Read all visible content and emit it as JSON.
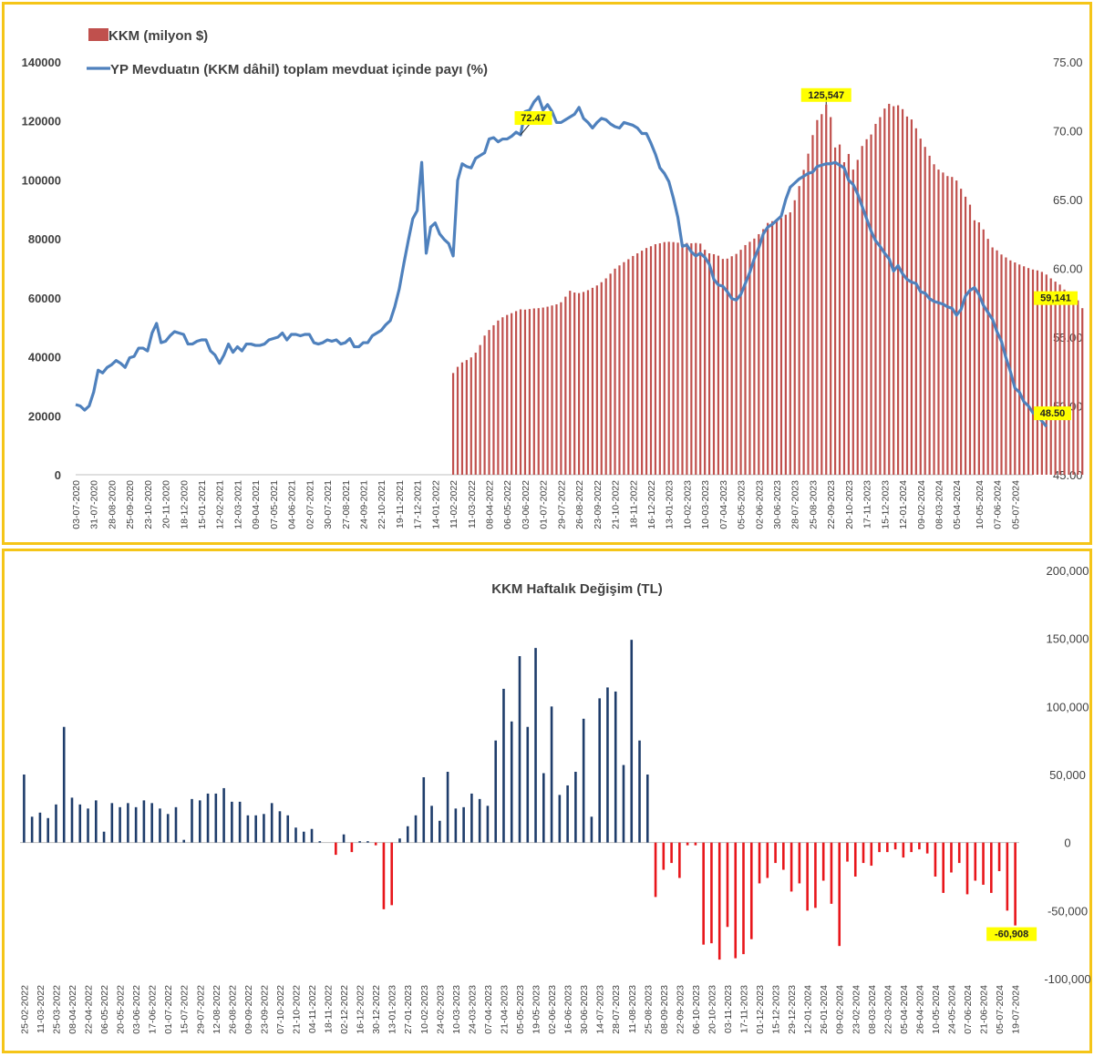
{
  "chart_data": [
    {
      "type": "bar+line",
      "title": "",
      "legend": [
        {
          "name": "KKM (milyon $)",
          "color": "#c0504d",
          "kind": "bar"
        },
        {
          "name": "YP Mevduatın (KKM dâhil) toplam mevduat içinde payı (%)",
          "color": "#4f81bd",
          "kind": "line"
        }
      ],
      "legend_position": "top-left",
      "left_axis": {
        "min": 0,
        "max": 140000,
        "ticks": [
          "0",
          "20000",
          "40000",
          "60000",
          "80000",
          "100000",
          "120000",
          "140000"
        ],
        "tick_values": [
          0,
          20000,
          40000,
          60000,
          80000,
          100000,
          120000,
          140000
        ]
      },
      "right_axis": {
        "min": 45,
        "max": 75,
        "ticks": [
          "45.00",
          "50.00",
          "55.00",
          "60.00",
          "65.00",
          "70.00",
          "75.00"
        ],
        "tick_values": [
          45,
          50,
          55,
          60,
          65,
          70,
          75
        ]
      },
      "x_tick_labels": [
        "03-07-2020",
        "31-07-2020",
        "28-08-2020",
        "25-09-2020",
        "23-10-2020",
        "20-11-2020",
        "18-12-2020",
        "15-01-2021",
        "12-02-2021",
        "12-03-2021",
        "09-04-2021",
        "07-05-2021",
        "04-06-2021",
        "02-07-2021",
        "30-07-2021",
        "27-08-2021",
        "24-09-2021",
        "22-10-2021",
        "19-11-2021",
        "17-12-2021",
        "14-01-2022",
        "11-02-2022",
        "11-03-2022",
        "08-04-2022",
        "06-05-2022",
        "03-06-2022",
        "01-07-2022",
        "29-07-2022",
        "26-08-2022",
        "23-09-2022",
        "21-10-2022",
        "18-11-2022",
        "16-12-2022",
        "13-01-2023",
        "10-02-2023",
        "10-03-2023",
        "07-04-2023",
        "05-05-2023",
        "02-06-2023",
        "30-06-2023",
        "28-07-2023",
        "25-08-2023",
        "22-09-2023",
        "20-10-2023",
        "17-11-2023",
        "15-12-2023",
        "12-01-2024",
        "09-02-2024",
        "08-03-2024",
        "05-04-2024",
        "10-05-2024",
        "07-06-2024",
        "05-07-2024"
      ],
      "kkm_series": {
        "name": "KKM (milyon $)",
        "start_date": "2022-02-11",
        "values": [
          34500,
          36600,
          38100,
          38900,
          39800,
          41400,
          44000,
          47200,
          49100,
          50700,
          52300,
          53400,
          54200,
          54800,
          55500,
          56100,
          56000,
          56200,
          56400,
          56500,
          56700,
          57000,
          57400,
          57800,
          58500,
          60400,
          62400,
          61800,
          61600,
          62000,
          62600,
          63400,
          64200,
          65300,
          66600,
          68200,
          69900,
          71000,
          72100,
          73100,
          74200,
          75100,
          76000,
          76900,
          77500,
          78200,
          78500,
          78900,
          79000,
          78900,
          78700,
          78600,
          78600,
          78500,
          78600,
          78400,
          76300,
          75100,
          74800,
          74300,
          73200,
          73300,
          74100,
          74900,
          76300,
          77900,
          79000,
          80100,
          81600,
          83300,
          85400,
          86000,
          86700,
          87100,
          88200,
          89000,
          93100,
          97900,
          103400,
          108900,
          115200,
          120300,
          122300,
          125547,
          121300,
          111000,
          112000,
          106000,
          108800,
          103500,
          106800,
          111500,
          113800,
          115400,
          119000,
          121300,
          124200,
          125800,
          125000,
          125300,
          124000,
          121500,
          120500,
          117500,
          114000,
          111200,
          108200,
          105300,
          103500,
          102500,
          101300,
          101000,
          99800,
          97000,
          94300,
          91600,
          86300,
          85600,
          83200,
          80000,
          77100,
          76100,
          74700,
          73700,
          72700,
          72000,
          71300,
          70700,
          70100,
          69600,
          69300,
          68800,
          67900,
          66600,
          65500,
          64500,
          62800,
          61300,
          60400,
          59141,
          56500
        ]
      },
      "share_series": {
        "name": "YP Mevduatın (KKM dâhil) toplam mevduat içinde payı (%)",
        "start_date": "2020-07-03",
        "values": [
          50.1,
          50.0,
          49.7,
          50.0,
          51.0,
          52.6,
          52.4,
          52.8,
          53.0,
          53.3,
          53.1,
          52.8,
          53.5,
          53.6,
          54.2,
          54.2,
          54.0,
          55.3,
          56.0,
          54.6,
          54.7,
          55.1,
          55.4,
          55.3,
          55.2,
          54.5,
          54.5,
          54.7,
          54.8,
          54.8,
          54.0,
          53.7,
          53.1,
          53.7,
          54.5,
          53.9,
          54.3,
          54.0,
          54.5,
          54.5,
          54.4,
          54.4,
          54.5,
          54.8,
          54.9,
          55.0,
          55.3,
          54.8,
          55.2,
          55.2,
          55.1,
          55.2,
          55.2,
          54.6,
          54.5,
          54.6,
          54.8,
          54.7,
          54.8,
          54.5,
          54.6,
          54.9,
          54.3,
          54.3,
          54.6,
          54.6,
          55.1,
          55.3,
          55.5,
          55.9,
          56.2,
          57.2,
          58.5,
          60.3,
          62.0,
          63.6,
          64.2,
          67.7,
          61.1,
          63.0,
          63.3,
          62.5,
          62.1,
          61.8,
          60.9,
          66.4,
          67.6,
          67.4,
          67.3,
          68.0,
          68.2,
          68.4,
          69.4,
          69.5,
          69.2,
          69.4,
          69.4,
          69.6,
          69.9,
          69.7,
          71.4,
          71.5,
          72.1,
          72.47,
          71.5,
          71.9,
          71.4,
          70.6,
          70.6,
          70.8,
          71.0,
          71.2,
          71.7,
          70.9,
          70.6,
          70.2,
          70.6,
          70.9,
          70.8,
          70.5,
          70.3,
          70.2,
          70.6,
          70.5,
          70.4,
          70.2,
          69.8,
          69.8,
          69.1,
          68.3,
          67.3,
          66.9,
          66.3,
          65.1,
          63.7,
          61.6,
          61.7,
          61.2,
          60.9,
          61.1,
          60.8,
          60.3,
          59.2,
          58.8,
          58.7,
          58.3,
          57.8,
          57.7,
          58.1,
          58.9,
          59.7,
          60.7,
          61.5,
          62.5,
          63.0,
          63.2,
          63.5,
          63.8,
          65.0,
          65.9,
          66.2,
          66.5,
          66.7,
          66.9,
          67.0,
          67.4,
          67.5,
          67.6,
          67.6,
          67.7,
          67.5,
          67.3,
          66.4,
          66.1,
          65.4,
          64.5,
          63.6,
          62.7,
          62.0,
          61.6,
          61.1,
          60.7,
          59.8,
          60.2,
          59.6,
          59.2,
          59.0,
          58.9,
          58.3,
          58.2,
          57.8,
          57.6,
          57.5,
          57.4,
          57.2,
          57.1,
          56.6,
          57.0,
          58.0,
          58.4,
          58.6,
          58.1,
          57.3,
          56.8,
          56.3,
          55.4,
          54.7,
          53.5,
          52.5,
          51.3,
          51.0,
          50.3,
          50.0,
          49.5,
          49.3,
          48.9,
          48.5
        ]
      },
      "annotations": [
        {
          "label": "72.47",
          "series": "share",
          "index": 99
        },
        {
          "label": "125,547",
          "series": "kkm",
          "index": 83
        },
        {
          "label": "59,141",
          "series": "kkm",
          "index": 139
        },
        {
          "label": "48.50",
          "series": "share",
          "index": 214
        }
      ],
      "grid": false
    },
    {
      "type": "bar",
      "title": "KKM Haftalık Değişim (TL)",
      "y_axis": {
        "min": -100000,
        "max": 200000,
        "ticks": [
          "-100,000",
          "-50,000",
          "0",
          "50,000",
          "100,000",
          "150,000",
          "200,000"
        ],
        "tick_values": [
          -100000,
          -50000,
          0,
          50000,
          100000,
          150000,
          200000
        ],
        "position": "right"
      },
      "x_tick_labels": [
        "25-02-2022",
        "11-03-2022",
        "25-03-2022",
        "08-04-2022",
        "22-04-2022",
        "06-05-2022",
        "20-05-2022",
        "03-06-2022",
        "17-06-2022",
        "01-07-2022",
        "15-07-2022",
        "29-07-2022",
        "12-08-2022",
        "26-08-2022",
        "09-09-2022",
        "23-09-2022",
        "07-10-2022",
        "21-10-2022",
        "04-11-2022",
        "18-11-2022",
        "02-12-2022",
        "16-12-2022",
        "30-12-2022",
        "13-01-2023",
        "27-01-2023",
        "10-02-2023",
        "24-02-2023",
        "10-03-2023",
        "24-03-2023",
        "07-04-2023",
        "21-04-2023",
        "05-05-2023",
        "19-05-2023",
        "02-06-2023",
        "16-06-2023",
        "30-06-2023",
        "14-07-2023",
        "28-07-2023",
        "11-08-2023",
        "25-08-2023",
        "08-09-2023",
        "22-09-2023",
        "06-10-2023",
        "20-10-2023",
        "03-11-2023",
        "17-11-2023",
        "01-12-2023",
        "15-12-2023",
        "29-12-2023",
        "12-01-2024",
        "26-01-2024",
        "09-02-2024",
        "23-02-2024",
        "08-03-2024",
        "22-03-2024",
        "05-04-2024",
        "26-04-2024",
        "10-05-2024",
        "24-05-2024",
        "07-06-2024",
        "21-06-2024",
        "05-07-2024",
        "19-07-2024"
      ],
      "positive_color": "#1f3d6b",
      "negative_color": "#e8161b",
      "values": [
        50000,
        19000,
        22000,
        18000,
        28000,
        85000,
        33000,
        28000,
        25000,
        31000,
        8000,
        29000,
        26000,
        29000,
        26000,
        31000,
        29000,
        25000,
        21000,
        26000,
        2000,
        32000,
        31000,
        36000,
        36000,
        40000,
        30000,
        30000,
        20000,
        20000,
        21000,
        29000,
        23000,
        20000,
        11000,
        8000,
        10000,
        1000,
        0,
        -9000,
        6000,
        -7000,
        1000,
        1000,
        -2000,
        -49000,
        -46000,
        3000,
        12000,
        20000,
        48000,
        27000,
        16000,
        52000,
        25000,
        26000,
        36000,
        32000,
        27000,
        75000,
        113000,
        89000,
        137000,
        85000,
        143000,
        51000,
        100000,
        35000,
        42000,
        52000,
        91000,
        19000,
        106000,
        114000,
        111000,
        57000,
        149000,
        75000,
        50000,
        -40000,
        -20000,
        -15000,
        -26000,
        -2000,
        -2000,
        -75000,
        -74000,
        -86000,
        -62000,
        -85000,
        -82000,
        -71000,
        -30000,
        -26000,
        -15000,
        -20000,
        -36000,
        -30000,
        -50000,
        -48000,
        -28000,
        -45000,
        -76000,
        -14000,
        -25000,
        -15000,
        -17000,
        -7000,
        -7000,
        -5000,
        -11000,
        -7000,
        -5000,
        -8000,
        -25000,
        -37000,
        -22000,
        -15000,
        -38000,
        -28000,
        -31000,
        -37000,
        -21000,
        -50000,
        -60908
      ],
      "annotations": [
        {
          "label": "-60,908",
          "index": 124
        }
      ],
      "grid": false
    }
  ]
}
